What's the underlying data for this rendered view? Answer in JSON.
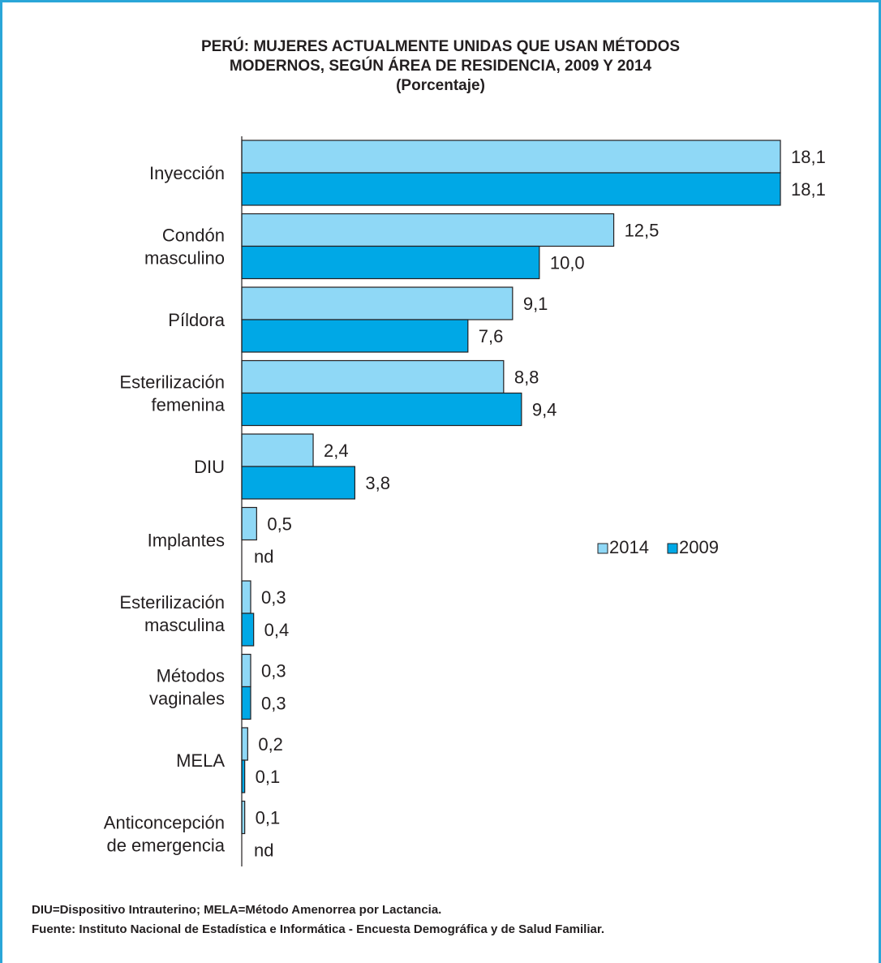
{
  "title": {
    "line1": "PERÚ: MUJERES ACTUALMENTE UNIDAS QUE USAN MÉTODOS",
    "line2": "MODERNOS, SEGÚN ÁREA DE RESIDENCIA, 2009 Y 2014",
    "line3": "(Porcentaje)"
  },
  "footnotes": {
    "abbreviations": "DIU=Dispositivo Intrauterino; MELA=Método Amenorrea por Lactancia.",
    "source": "Fuente: Instituto Nacional de Estadística e Informática - Encuesta Demográfica y de  Salud Familiar."
  },
  "colors": {
    "series_2014": "#8fd8f6",
    "series_2009": "#00a8e6",
    "bar_border": "#231f20",
    "frame": "#2aa6d8"
  },
  "chart_data": {
    "type": "bar",
    "orientation": "horizontal",
    "categories": [
      [
        "Inyección"
      ],
      [
        "Condón",
        "masculino"
      ],
      [
        "Píldora"
      ],
      [
        "Esterilización",
        "femenina"
      ],
      [
        "DIU"
      ],
      [
        "Implantes"
      ],
      [
        "Esterilización",
        "masculina"
      ],
      [
        "Métodos",
        "vaginales"
      ],
      [
        "MELA"
      ],
      [
        "Anticoncepción",
        "de emergencia"
      ]
    ],
    "series": [
      {
        "name": "2014",
        "values": [
          18.1,
          12.5,
          9.1,
          8.8,
          2.4,
          0.5,
          0.3,
          0.3,
          0.2,
          0.1
        ],
        "labels": [
          "18,1",
          "12,5",
          "9,1",
          "8,8",
          "2,4",
          "0,5",
          "0,3",
          "0,3",
          "0,2",
          "0,1"
        ]
      },
      {
        "name": "2009",
        "values": [
          18.1,
          10.0,
          7.6,
          9.4,
          3.8,
          null,
          0.4,
          0.3,
          0.1,
          null
        ],
        "labels": [
          "18,1",
          "10,0",
          "7,6",
          "9,4",
          "3,8",
          "nd",
          "0,4",
          "0,3",
          "0,1",
          "nd"
        ]
      }
    ],
    "xlim": [
      0,
      18.1
    ],
    "grid": false,
    "legend_position": "right"
  }
}
